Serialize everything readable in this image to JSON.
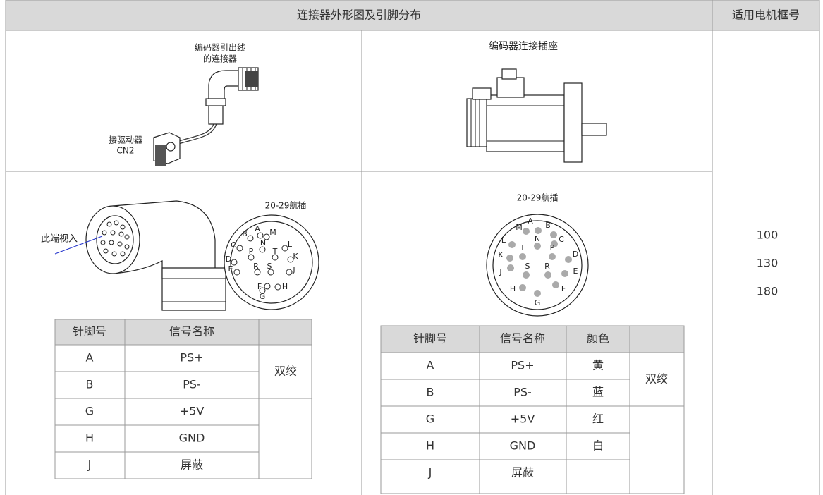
{
  "header": {
    "title": "连接器外形图及引脚分布",
    "frame_size": "适用电机框号"
  },
  "cable": {
    "connector_label": [
      "编码器引出线",
      "的连接器"
    ],
    "driver_label": [
      "接驱动器",
      "CN2"
    ]
  },
  "socket": {
    "label": "编码器连接插座"
  },
  "plug_view": {
    "view_label": "此端视入",
    "diagram_title": "20-29航插",
    "pins": [
      "B",
      "A",
      "M",
      "C",
      "N",
      "L",
      "P",
      "T",
      "K",
      "D",
      "R",
      "S",
      "J",
      "E",
      "F",
      "H",
      "G"
    ]
  },
  "socket_view": {
    "diagram_title": "20-29航插",
    "pins": [
      "M",
      "A",
      "B",
      "L",
      "N",
      "C",
      "K",
      "T",
      "P",
      "D",
      "J",
      "S",
      "R",
      "E",
      "H",
      "F",
      "G"
    ]
  },
  "plug_table": {
    "columns": [
      "针脚号",
      "信号名称"
    ],
    "rows": [
      [
        "A",
        "PS+"
      ],
      [
        "B",
        "PS-"
      ],
      [
        "G",
        "+5V"
      ],
      [
        "H",
        "GND"
      ],
      [
        "J",
        "屏蔽"
      ]
    ],
    "pair": "双绞"
  },
  "socket_table": {
    "columns": [
      "针脚号",
      "信号名称",
      "颜色"
    ],
    "rows": [
      [
        "A",
        "PS+",
        "黄"
      ],
      [
        "B",
        "PS-",
        "蓝"
      ],
      [
        "G",
        "+5V",
        "红"
      ],
      [
        "H",
        "GND",
        "白"
      ],
      [
        "J",
        "屏蔽",
        ""
      ]
    ],
    "pair": "双绞"
  },
  "frame_sizes": [
    100,
    130,
    180
  ]
}
